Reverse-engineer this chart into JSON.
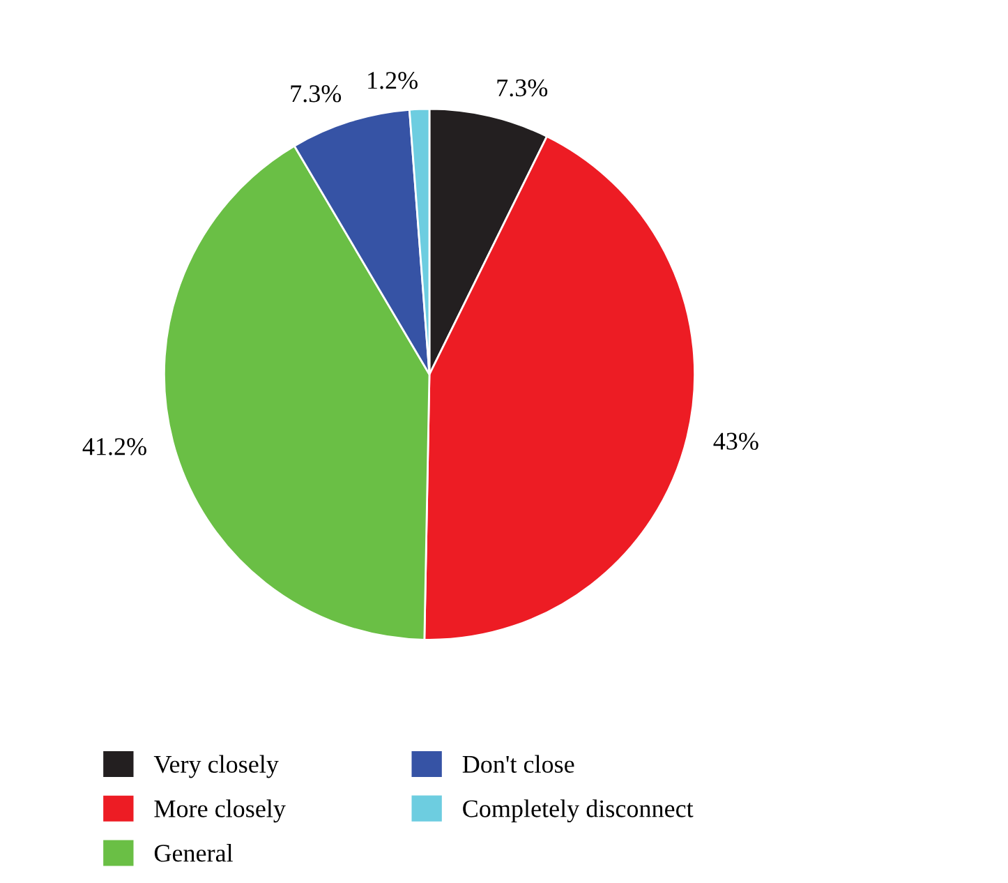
{
  "chart_data": {
    "type": "pie",
    "categories": [
      "Very closely",
      "More closely",
      "General",
      "Don't close",
      "Completely disconnect"
    ],
    "values": [
      7.3,
      43,
      41.2,
      7.3,
      1.2
    ],
    "value_labels": [
      "7.3%",
      "43%",
      "41.2%",
      "7.3%",
      "1.2%"
    ],
    "colors": [
      "#231f20",
      "#ed1c24",
      "#6abf45",
      "#3653a5",
      "#6dcde0"
    ],
    "legend": "bottom"
  }
}
